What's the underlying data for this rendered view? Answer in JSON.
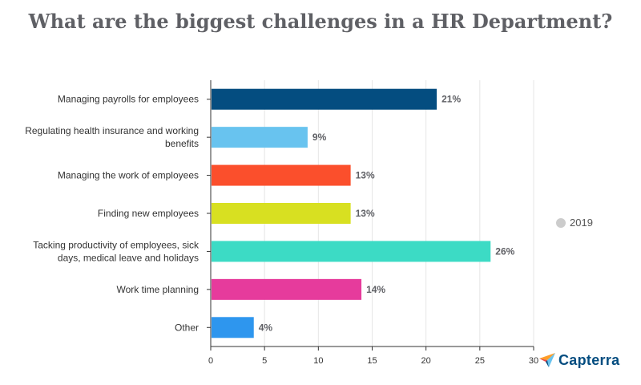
{
  "chart_data": {
    "type": "bar",
    "orientation": "horizontal",
    "title": "What are the biggest challenges in a HR Department?",
    "categories": [
      [
        "Managing payrolls for employees"
      ],
      [
        "Regulating health insurance and working",
        "benefits"
      ],
      [
        "Managing the work of employees"
      ],
      [
        "Finding new employees"
      ],
      [
        "Tacking productivity of employees, sick",
        "days, medical leave and holidays"
      ],
      [
        "Work time planning"
      ],
      [
        "Other"
      ]
    ],
    "series": [
      {
        "name": "2019",
        "values": [
          21,
          9,
          13,
          13,
          26,
          14,
          4
        ],
        "labels": [
          "21%",
          "9%",
          "13%",
          "13%",
          "26%",
          "14%",
          "4%"
        ]
      }
    ],
    "colors": [
      "#044d80",
      "#68c3ef",
      "#fb4f2c",
      "#d8e021",
      "#3cdbc5",
      "#e63b9c",
      "#2e96ee"
    ],
    "xlim": [
      0,
      30
    ],
    "xticks": [
      "0",
      "5",
      "10",
      "15",
      "20",
      "25",
      "30"
    ],
    "grid": true,
    "legend_position": "right"
  },
  "legend": {
    "label": "2019",
    "color": "#cccccc"
  },
  "brand": {
    "name": "Capterra",
    "icon": "capterra-logo-icon"
  }
}
